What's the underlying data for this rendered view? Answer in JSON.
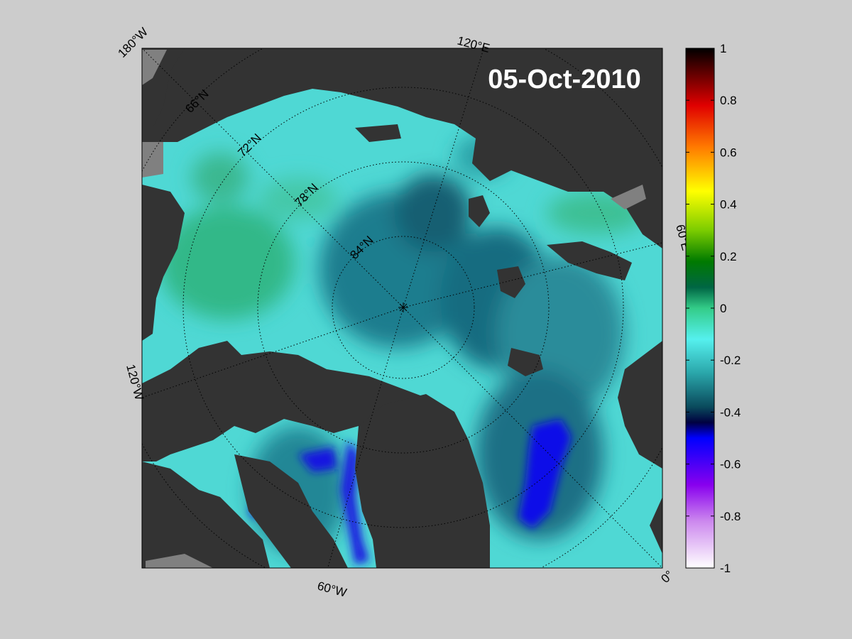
{
  "date_label": "05-Oct-2010",
  "map": {
    "projection": "north polar stereographic",
    "center_marker": "north-pole",
    "longitude_labels": [
      "180°W",
      "120°E",
      "120°W",
      "60°E",
      "60°W",
      "0°"
    ],
    "latitude_labels": [
      "66°N",
      "72°N",
      "78°N",
      "84°N"
    ],
    "colors": {
      "land": "#333333",
      "ice_shelf_gray": "#808080",
      "background": "#cccccc",
      "gridline": "#000000"
    }
  },
  "colorbar": {
    "min": -1,
    "max": 1,
    "tick_values": [
      1,
      0.8,
      0.6,
      0.4,
      0.2,
      0,
      -0.2,
      -0.4,
      -0.6,
      -0.8,
      -1
    ],
    "tick_labels": [
      "1",
      "0.8",
      "0.6",
      "0.4",
      "0.2",
      "0",
      "-0.2",
      "-0.4",
      "-0.6",
      "-0.8",
      "-1"
    ],
    "color_stops": [
      {
        "value": 1,
        "color": "#000000"
      },
      {
        "value": 0.88,
        "color": "#7a0000"
      },
      {
        "value": 0.78,
        "color": "#e00000"
      },
      {
        "value": 0.62,
        "color": "#ff7a00"
      },
      {
        "value": 0.45,
        "color": "#ffff00"
      },
      {
        "value": 0.3,
        "color": "#7ccc00"
      },
      {
        "value": 0.18,
        "color": "#007a00"
      },
      {
        "value": 0.08,
        "color": "#006644"
      },
      {
        "value": 0.0,
        "color": "#33cc88"
      },
      {
        "value": -0.12,
        "color": "#55f0ee"
      },
      {
        "value": -0.25,
        "color": "#2aa6aa"
      },
      {
        "value": -0.38,
        "color": "#0a4a5c"
      },
      {
        "value": -0.44,
        "color": "#000040"
      },
      {
        "value": -0.5,
        "color": "#0000ff"
      },
      {
        "value": -0.68,
        "color": "#8800ee"
      },
      {
        "value": -0.82,
        "color": "#cc88ee"
      },
      {
        "value": -1,
        "color": "#ffffff"
      }
    ]
  }
}
